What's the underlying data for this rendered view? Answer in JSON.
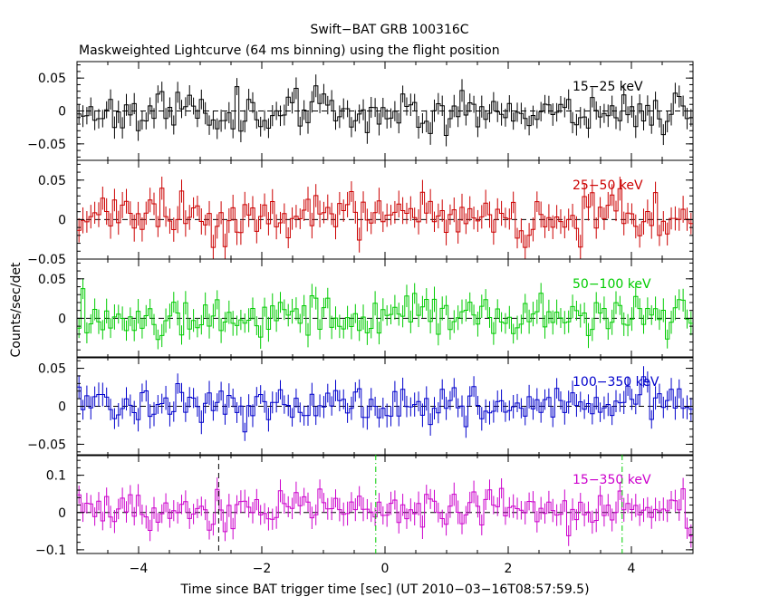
{
  "title_line1": "Swift−BAT GRB 100316C",
  "title_line2": "Maskweighted Lightcurve (64 ms binning) using the flight position",
  "ylabel": "Counts/sec/det",
  "xlabel": "Time since BAT trigger time [sec] (UT 2010−03−16T08:57:59.5)",
  "colors": {
    "black": "#000000",
    "red": "#cc0000",
    "green": "#00cc00",
    "blue": "#0000cc",
    "magenta": "#cc00cc"
  },
  "chart_data": {
    "type": "line",
    "xlim": [
      -5,
      5
    ],
    "x_ticks": [
      -4,
      -2,
      0,
      2,
      4
    ],
    "x_tick_labels": [
      "−4",
      "−2",
      "0",
      "2",
      "4"
    ],
    "bin_width_s": 0.064,
    "series": [
      {
        "name": "15-25 keV",
        "label": "15−25 keV",
        "color": "#000000",
        "ylim": [
          -0.075,
          0.075
        ],
        "yticks": [
          -0.05,
          0,
          0.05
        ],
        "ytick_labels": [
          "−0.05",
          "0",
          "0.05"
        ],
        "mean": 0.0,
        "scatter": 0.016,
        "err": 0.015,
        "seed": 11
      },
      {
        "name": "25-50 keV",
        "label": "25−50 keV",
        "color": "#cc0000",
        "ylim": [
          -0.05,
          0.075
        ],
        "yticks": [
          -0.05,
          0,
          0.05
        ],
        "ytick_labels": [
          "−0.05",
          "0",
          "0.05"
        ],
        "mean": 0.003,
        "scatter": 0.015,
        "err": 0.015,
        "seed": 23
      },
      {
        "name": "50-100 keV",
        "label": "50−100 keV",
        "color": "#00cc00",
        "ylim": [
          -0.05,
          0.075
        ],
        "yticks": [
          0,
          0.05
        ],
        "ytick_labels": [
          "0",
          "0.05"
        ],
        "mean": 0.003,
        "scatter": 0.014,
        "err": 0.014,
        "seed": 37
      },
      {
        "name": "100-350 keV",
        "label": "100−350 keV",
        "color": "#0000cc",
        "ylim": [
          -0.065,
          0.065
        ],
        "yticks": [
          -0.05,
          0,
          0.05
        ],
        "ytick_labels": [
          "−0.05",
          "0",
          "0.05"
        ],
        "mean": 0.002,
        "scatter": 0.014,
        "err": 0.014,
        "seed": 41
      },
      {
        "name": "15-350 keV",
        "label": "15−350 keV",
        "color": "#cc00cc",
        "ylim": [
          -0.11,
          0.155
        ],
        "yticks": [
          -0.1,
          0,
          0.1
        ],
        "ytick_labels": [
          "−0.1",
          "0",
          "0.1"
        ],
        "mean": 0.008,
        "scatter": 0.028,
        "err": 0.028,
        "seed": 53
      }
    ],
    "vertical_markers": [
      {
        "x": -2.7,
        "style": "dashed",
        "color": "#000000"
      },
      {
        "x": -0.15,
        "style": "dashdot",
        "color": "#00cc00"
      },
      {
        "x": 3.85,
        "style": "dashdot",
        "color": "#00cc00"
      }
    ]
  }
}
